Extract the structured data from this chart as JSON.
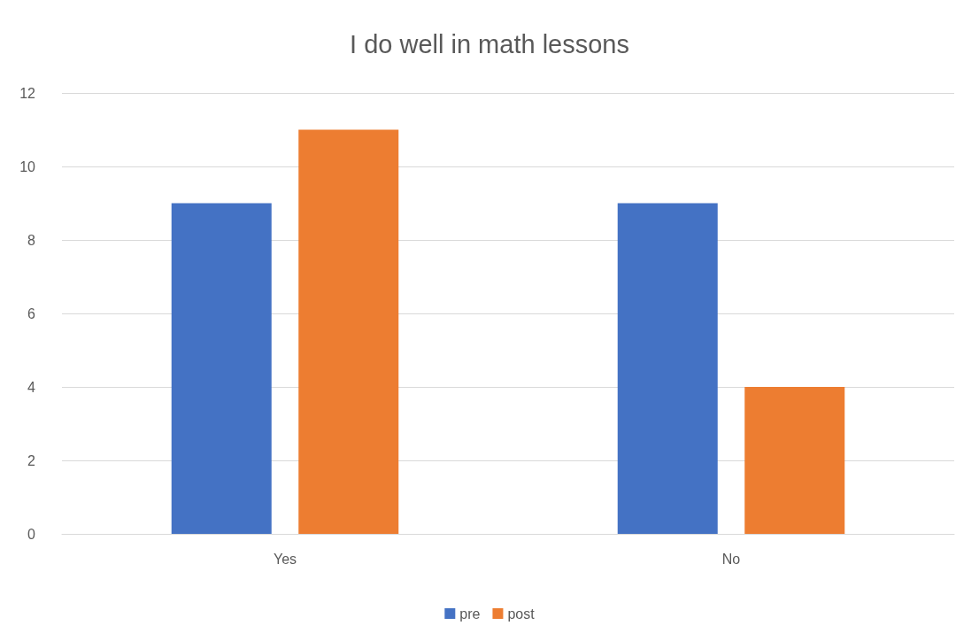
{
  "chart_data": {
    "type": "bar",
    "title": "I do well in math lessons",
    "categories": [
      "Yes",
      "No"
    ],
    "series": [
      {
        "name": "pre",
        "color": "#4472c4",
        "values": [
          9,
          9
        ]
      },
      {
        "name": "post",
        "color": "#ed7d31",
        "values": [
          11,
          4
        ]
      }
    ],
    "ylim": [
      0,
      12
    ],
    "yticks": [
      0,
      2,
      4,
      6,
      8,
      10,
      12
    ],
    "grid": "y",
    "legend": "bottom"
  }
}
